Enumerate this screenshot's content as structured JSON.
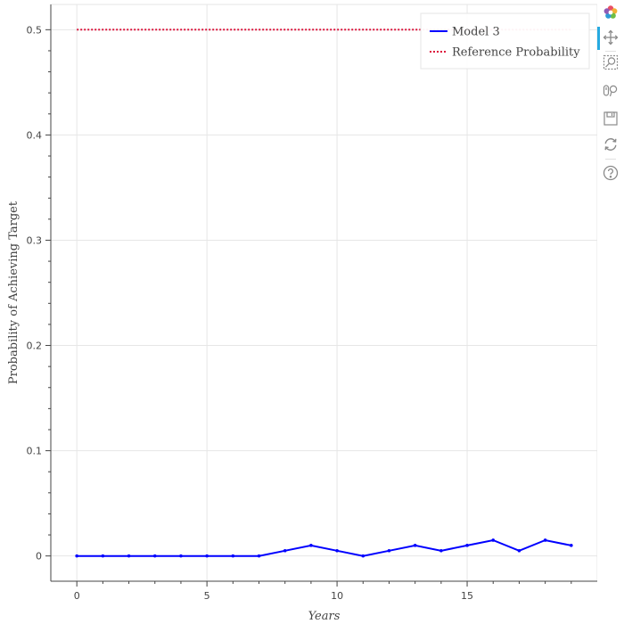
{
  "chart_data": {
    "type": "line",
    "title": "",
    "xlabel": "Years",
    "ylabel": "Probability of Achieving Target",
    "xlim": [
      -1,
      20
    ],
    "ylim": [
      -0.024,
      0.524
    ],
    "x_ticks": [
      0,
      5,
      10,
      15
    ],
    "x_tick_labels": [
      "0",
      "5",
      "10",
      "15"
    ],
    "y_ticks": [
      0,
      0.1,
      0.2,
      0.3,
      0.4,
      0.5
    ],
    "y_tick_labels": [
      "0",
      "0.1",
      "0.2",
      "0.3",
      "0.4",
      "0.5"
    ],
    "grid": true,
    "legend_position": "top-right",
    "series": [
      {
        "name": "Model 3",
        "color": "#0000ff",
        "style": "solid-with-markers",
        "x": [
          0,
          1,
          2,
          3,
          4,
          5,
          6,
          7,
          8,
          9,
          10,
          11,
          12,
          13,
          14,
          15,
          16,
          17,
          18,
          19
        ],
        "y": [
          0,
          0,
          0,
          0,
          0,
          0,
          0,
          0,
          0.005,
          0.01,
          0.005,
          0,
          0.005,
          0.01,
          0.005,
          0.01,
          0.015,
          0.005,
          0.015,
          0.01
        ]
      },
      {
        "name": "Reference Probability",
        "color": "#dc143c",
        "style": "dotted",
        "x": [
          0,
          19
        ],
        "y": [
          0.5,
          0.5
        ]
      }
    ]
  },
  "toolbar": {
    "items": [
      {
        "icon": "bokeh-logo-icon"
      },
      {
        "icon": "pan-icon",
        "active": true
      },
      {
        "icon": "box-zoom-icon"
      },
      {
        "icon": "wheel-zoom-icon"
      },
      {
        "icon": "save-icon"
      },
      {
        "icon": "reset-icon"
      },
      {
        "icon": "help-icon"
      }
    ]
  }
}
